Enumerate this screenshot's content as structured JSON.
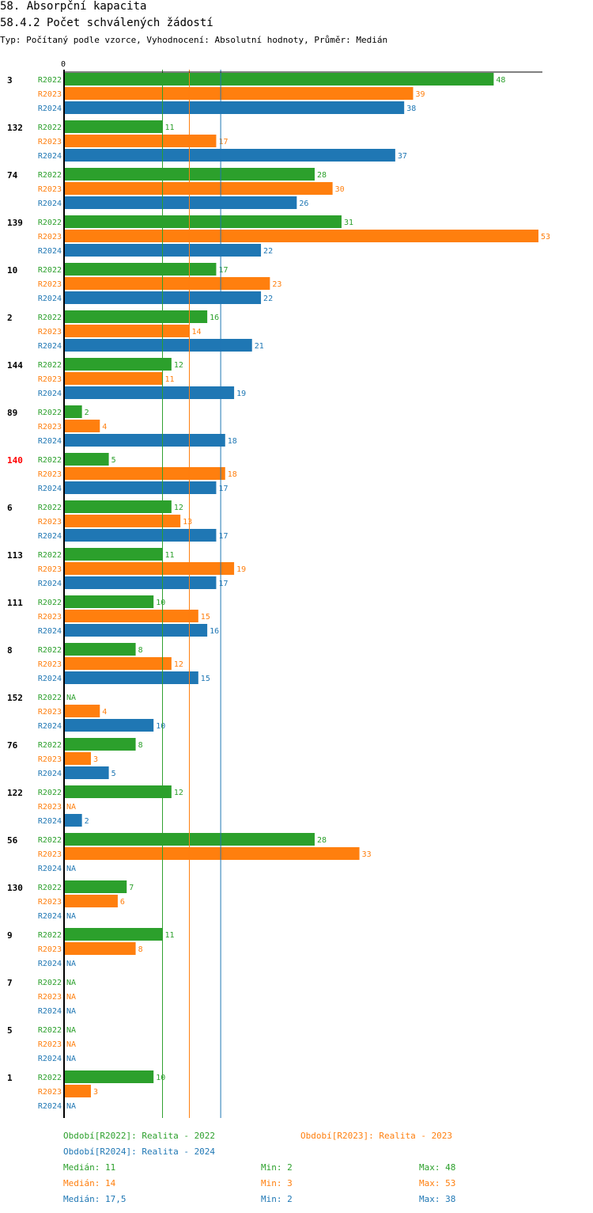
{
  "header": {
    "title": "58. Absorpční kapacita",
    "subtitle": "58.4.2 Počet schválených žádostí",
    "meta": "Typ: Počítaný podle vzorce, Vyhodnocení: Absolutní hodnoty, Průměr: Medián"
  },
  "colors": {
    "R2022": "#2ca02c",
    "R2023": "#ff7f0e",
    "R2024": "#1f77b4",
    "highlight": "#ff0000",
    "text": "#000000"
  },
  "chart_data": {
    "type": "bar",
    "orientation": "horizontal",
    "axis_label": "0",
    "na_label": "NA",
    "xlim": [
      0,
      53
    ],
    "series_names": [
      "R2022",
      "R2023",
      "R2024"
    ],
    "highlight_category": "140",
    "categories": [
      "3",
      "132",
      "74",
      "139",
      "10",
      "2",
      "144",
      "89",
      "140",
      "6",
      "113",
      "111",
      "8",
      "152",
      "76",
      "122",
      "56",
      "130",
      "9",
      "7",
      "5",
      "1"
    ],
    "series": [
      {
        "name": "R2022",
        "values": [
          48,
          11,
          28,
          31,
          17,
          16,
          12,
          2,
          5,
          12,
          11,
          10,
          8,
          null,
          8,
          12,
          28,
          7,
          11,
          null,
          null,
          10
        ]
      },
      {
        "name": "R2023",
        "values": [
          39,
          17,
          30,
          53,
          23,
          14,
          11,
          4,
          18,
          13,
          19,
          15,
          12,
          4,
          3,
          null,
          33,
          6,
          8,
          null,
          null,
          3
        ]
      },
      {
        "name": "R2024",
        "values": [
          38,
          37,
          26,
          22,
          22,
          21,
          19,
          18,
          17,
          17,
          17,
          16,
          15,
          10,
          5,
          2,
          null,
          null,
          null,
          null,
          null,
          null
        ]
      }
    ],
    "medians": [
      11,
      14,
      17.5
    ]
  },
  "legend": {
    "periods": [
      {
        "series": "R2022",
        "text": "Období[R2022]: Realita - 2022"
      },
      {
        "series": "R2023",
        "text": "Období[R2023]: Realita - 2023"
      },
      {
        "series": "R2024",
        "text": "Období[R2024]: Realita - 2024"
      }
    ],
    "stats": [
      {
        "series": "R2022",
        "median": "Medián: 11",
        "min": "Min: 2",
        "max": "Max: 48"
      },
      {
        "series": "R2023",
        "median": "Medián: 14",
        "min": "Min: 3",
        "max": "Max: 53"
      },
      {
        "series": "R2024",
        "median": "Medián: 17,5",
        "min": "Min: 2",
        "max": "Max: 38"
      }
    ]
  }
}
